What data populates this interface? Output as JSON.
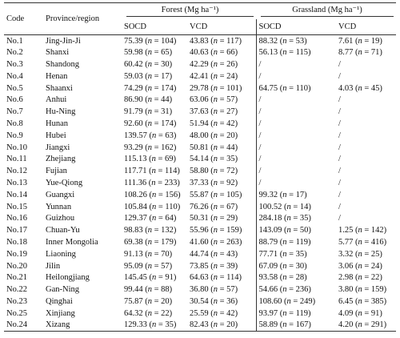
{
  "header": {
    "code": "Code",
    "province": "Province/region",
    "forest": "Forest (Mg ha⁻¹)",
    "grassland": "Grassland (Mg ha⁻¹)",
    "sub": [
      "SOCD",
      "VCD",
      "SOCD",
      "VCD"
    ]
  },
  "table": {
    "rows": [
      [
        "No.1",
        "Jing-Jin-Ji",
        "75.39 (n = 104)",
        "43.83 (n = 117)",
        "88.32 (n = 53)",
        "7.61 (n = 19)"
      ],
      [
        "No.2",
        "Shanxi",
        "59.98 (n = 65)",
        "40.63 (n = 66)",
        "56.13 (n = 115)",
        "8.77 (n = 71)"
      ],
      [
        "No.3",
        "Shandong",
        "60.42 (n = 30)",
        "42.29 (n = 26)",
        "/",
        "/"
      ],
      [
        "No.4",
        "Henan",
        "59.03 (n = 17)",
        "42.41 (n = 24)",
        "/",
        "/"
      ],
      [
        "No.5",
        "Shaanxi",
        "74.29 (n = 174)",
        "29.78 (n = 101)",
        "64.75 (n = 110)",
        "4.03 (n = 45)"
      ],
      [
        "No.6",
        "Anhui",
        "86.90 (n = 44)",
        "63.06 (n = 57)",
        "/",
        "/"
      ],
      [
        "No.7",
        "Hu-Ning",
        "91.79 (n = 31)",
        "37.63 (n = 27)",
        "/",
        "/"
      ],
      [
        "No.8",
        "Hunan",
        "92.60 (n = 174)",
        "51.94 (n = 42)",
        "/",
        "/"
      ],
      [
        "No.9",
        "Hubei",
        "139.57 (n = 63)",
        "48.00 (n = 20)",
        "/",
        "/"
      ],
      [
        "No.10",
        "Jiangxi",
        "93.29 (n = 162)",
        "50.81 (n = 44)",
        "/",
        "/"
      ],
      [
        "No.11",
        "Zhejiang",
        "115.13 (n = 69)",
        "54.14 (n = 35)",
        "/",
        "/"
      ],
      [
        "No.12",
        "Fujian",
        "117.71 (n = 114)",
        "58.80 (n = 72)",
        "/",
        "/"
      ],
      [
        "No.13",
        "Yue-Qiong",
        "111.36 (n = 233)",
        "37.33 (n = 92)",
        "/",
        "/"
      ],
      [
        "No.14",
        "Guangxi",
        "108.26 (n = 156)",
        "55.87 (n = 105)",
        "99.32 (n = 17)",
        "/"
      ],
      [
        "No.15",
        "Yunnan",
        "105.84 (n = 110)",
        "76.26 (n = 67)",
        "100.52 (n = 14)",
        "/"
      ],
      [
        "No.16",
        "Guizhou",
        "129.37 (n = 64)",
        "50.31 (n = 29)",
        "284.18 (n = 35)",
        "/"
      ],
      [
        "No.17",
        "Chuan-Yu",
        "98.83 (n = 132)",
        "55.96 (n = 159)",
        "143.09 (n = 50)",
        "1.25 (n = 142)"
      ],
      [
        "No.18",
        "Inner Mongolia",
        "69.38 (n = 179)",
        "41.60 (n = 263)",
        "88.79 (n = 119)",
        "5.77 (n = 416)"
      ],
      [
        "No.19",
        "Liaoning",
        "91.13 (n = 70)",
        "44.74 (n = 43)",
        "77.71 (n = 35)",
        "3.32 (n = 25)"
      ],
      [
        "No.20",
        "Jilin",
        "95.09 (n = 57)",
        "73.85 (n = 39)",
        "67.09 (n = 30)",
        "3.06 (n = 24)"
      ],
      [
        "No.21",
        "Heilongjiang",
        "145.45 (n = 91)",
        "64.63 (n = 114)",
        "93.58 (n = 28)",
        "2.98 (n = 22)"
      ],
      [
        "No.22",
        "Gan-Ning",
        "99.44 (n = 88)",
        "36.80 (n = 57)",
        "54.66 (n = 236)",
        "3.80 (n = 159)"
      ],
      [
        "No.23",
        "Qinghai",
        "75.87 (n = 20)",
        "30.54 (n = 36)",
        "108.60 (n = 249)",
        "6.45 (n = 385)"
      ],
      [
        "No.25",
        "Xinjiang",
        "64.32 (n = 22)",
        "25.59 (n = 42)",
        "93.97 (n = 119)",
        "4.09 (n = 91)"
      ],
      [
        "No.24",
        "Xizang",
        "129.33 (n = 35)",
        "82.43 (n = 20)",
        "58.89 (n = 167)",
        "4.20 (n = 291)"
      ]
    ]
  }
}
